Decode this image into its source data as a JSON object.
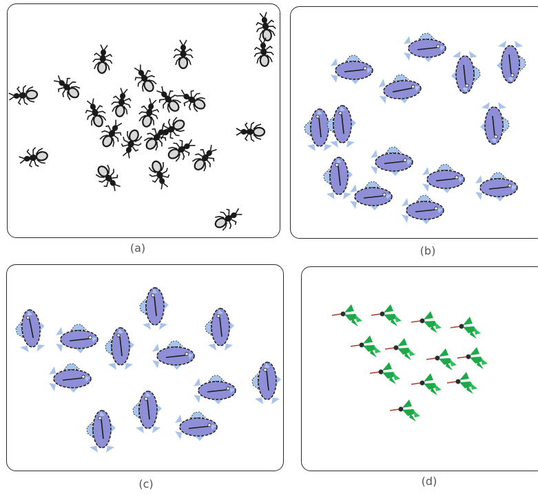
{
  "panels": [
    {
      "id": "a",
      "caption": "(a)",
      "subject": "ants",
      "arrangement": "swarm"
    },
    {
      "id": "b",
      "caption": "(b)",
      "subject": "fish",
      "arrangement": "torus"
    },
    {
      "id": "c",
      "caption": "(c)",
      "subject": "fish",
      "arrangement": "disordered"
    },
    {
      "id": "d",
      "caption": "(d)",
      "subject": "birds",
      "arrangement": "v-formation"
    }
  ],
  "colors": {
    "fish_body": "#8f8fd8",
    "fish_fin": "#a9c4ec",
    "fish_outline": "#1c1c1c",
    "bird_wing": "#1ea84a",
    "bird_head": "#2c2c2c",
    "bird_beak": "#b03a2e",
    "ant_body": "#1a1a1a",
    "border": "#2a2a2a"
  }
}
